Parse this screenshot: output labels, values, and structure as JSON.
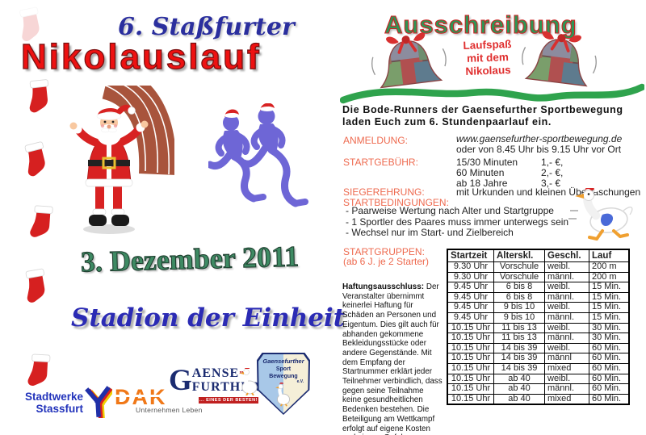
{
  "colors": {
    "title_red": "#EE1111",
    "subtitle_blue": "#2B2F9E",
    "date_green": "#3E8A63",
    "venue_blue": "#2B2BB4",
    "header_green": "#2E9455",
    "header_outline_red": "#CC2222",
    "section_label_orange": "#EE6A4F",
    "swoosh_green": "#2FA34D",
    "runner_purple": "#6E66D6",
    "santa_red": "#D82222",
    "track_brown": "#A8543C"
  },
  "left": {
    "subtitle": "6. Staßfurter",
    "title": "Nikolauslauf",
    "date": "3. Dezember 2011",
    "venue": "Stadion der Einheit",
    "sponsors": {
      "stadtwerke_line1": "Stadtwerke",
      "stadtwerke_line2": "Stassfurt",
      "dak": "DAK",
      "dak_tagline": "Unternehmen Leben",
      "gaense_g": "G",
      "gaense_aense": "AENSE",
      "gaense_mark": "”",
      "gaense_further": "FURTHER",
      "gaense_banner": "... EINES DER BESTEN!",
      "badge_line1": "Gaensefurther",
      "badge_line2": "Sport",
      "badge_line3": "Bewegung",
      "badge_ev": "e.V."
    }
  },
  "right": {
    "header": "Ausschreibung",
    "tagline": [
      "Laufspaß",
      "mit dem",
      "Nikolaus"
    ],
    "intro_line1": "Die Bode-Runners der Gaensefurther Sportbewegung",
    "intro_line2": "laden Euch zum 6. Stundenpaarlauf ein.",
    "sections": {
      "anmeldung_label": "ANMELDUNG:",
      "anmeldung_web": "www.gaensefurther-sportbewegung.de",
      "anmeldung_alt": "oder von 8.45 Uhr bis 9.15 Uhr  vor Ort",
      "startgebuehr_label": "STARTGEBÜHR:",
      "fees": [
        {
          "item": "15/30 Minuten",
          "price": "1,- €,"
        },
        {
          "item": "60 Minuten",
          "price": "2,- €,"
        },
        {
          "item": "ab 18 Jahre",
          "price": "3,- €"
        }
      ],
      "siegerehrung_label": "SIEGEREHRUNG:",
      "siegerehrung_text": "mit Urkunden und kleinen Überraschungen",
      "startbedingungen_label": "STARTBEDINGUNGEN:",
      "bedingungen": [
        "- Paarweise Wertung nach Alter und Startgruppe",
        "- 1 Sportler des Paares muss immer unterwegs sein",
        "- Wechsel nur im Start- und Zielbereich"
      ],
      "startgruppen_label": "STARTGRUPPEN:",
      "startgruppen_note": "(ab 6 J. je 2 Starter)"
    },
    "table": {
      "headers": [
        "Startzeit",
        "Alterskl.",
        "Geschl.",
        "Lauf"
      ],
      "rows": [
        [
          "9.30 Uhr",
          "Vorschule",
          "weibl.",
          "200 m"
        ],
        [
          "9.30 Uhr",
          "Vorschule",
          "männl.",
          "200 m"
        ],
        [
          "9.45 Uhr",
          "6 bis 8",
          "weibl.",
          "15 Min."
        ],
        [
          "9.45 Uhr",
          "6 bis 8",
          "männl.",
          "15 Min."
        ],
        [
          "9.45 Uhr",
          "9 bis 10",
          "weibl.",
          "15 Min."
        ],
        [
          "9.45 Uhr",
          "9 bis 10",
          "männl.",
          "15 Min."
        ],
        [
          "10.15 Uhr",
          "11 bis 13",
          "weibl.",
          "30 Min."
        ],
        [
          "10.15 Uhr",
          "11 bis 13",
          "männl.",
          "30 Min."
        ],
        [
          "10.15 Uhr",
          "14 bis 39",
          "weibl.",
          "60 Min."
        ],
        [
          "10.15 Uhr",
          "14 bis 39",
          "männl",
          "60 Min."
        ],
        [
          "10.15 Uhr",
          "14 bis 39",
          "mixed",
          "60 Min."
        ],
        [
          "10.15 Uhr",
          "ab 40",
          "weibl.",
          "60 Min."
        ],
        [
          "10.15 Uhr",
          "ab 40",
          "männl.",
          "60 Min."
        ],
        [
          "10.15 Uhr",
          "ab 40",
          "mixed",
          "60 Min."
        ]
      ]
    },
    "disclaimer_bold": "Haftungsausschluss:",
    "disclaimer_text": " Der Veranstalter übernimmt keinerlei Haftung für Schäden an Personen und Eigentum. Dies gilt auch für abhanden gekommene Bekleidungsstücke oder andere Gegenstände. Mit dem Empfang der Startnummer erklärt jeder Teilnehmer verbindlich, dass gegen seine Teilnahme keine gesundheitlichen Bedenken bestehen. Die Beteiligung am Wettkampf erfolgt auf eigene Kosten und eigene Gefahr."
  }
}
